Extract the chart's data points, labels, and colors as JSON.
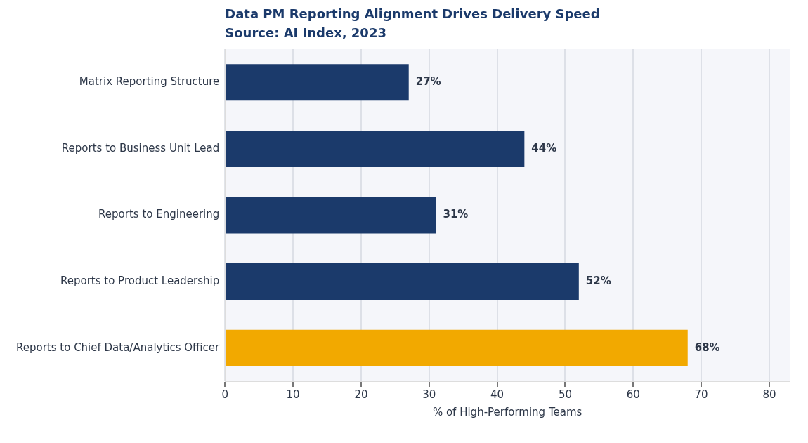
{
  "chart_data": {
    "type": "bar",
    "orientation": "horizontal",
    "title": "Data PM Reporting Alignment Drives Delivery Speed",
    "subtitle": "Source: AI Index, 2023",
    "categories": [
      "Matrix Reporting Structure",
      "Reports to Business Unit Lead",
      "Reports to Engineering",
      "Reports to Product Leadership",
      "Reports to Chief Data/Analytics Officer"
    ],
    "values": [
      27,
      44,
      31,
      52,
      68
    ],
    "colors": [
      "#1b3a6b",
      "#1b3a6b",
      "#1b3a6b",
      "#1b3a6b",
      "#f2a900"
    ],
    "value_labels": [
      "27%",
      "44%",
      "31%",
      "52%",
      "68%"
    ],
    "xlabel": "% of High-Performing Teams",
    "xlim": [
      0,
      83
    ],
    "xticks": [
      0,
      10,
      20,
      30,
      40,
      50,
      60,
      70,
      80
    ],
    "grid": "x",
    "legend": false
  }
}
